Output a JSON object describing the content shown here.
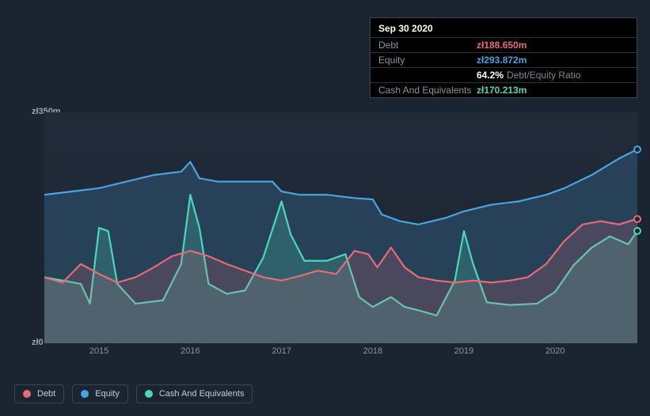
{
  "tooltip": {
    "date": "Sep 30 2020",
    "rows": [
      {
        "label": "Debt",
        "value": "zł188.650m",
        "color": "#e76a78"
      },
      {
        "label": "Equity",
        "value": "zł293.872m",
        "color": "#4aa3e0"
      },
      {
        "label": "",
        "value": "64.2%",
        "suffix": "Debt/Equity Ratio",
        "color": "#ffffff"
      },
      {
        "label": "Cash And Equivalents",
        "value": "zł170.213m",
        "color": "#4fd6b8"
      }
    ]
  },
  "chart": {
    "type": "area-line",
    "ymin": 0,
    "ymax": 350,
    "ylabels": [
      {
        "text": "zł350m",
        "frac": 0
      },
      {
        "text": "zł0",
        "frac": 1
      }
    ],
    "xmin": 2014.4,
    "xmax": 2020.9,
    "xticks": [
      2015,
      2016,
      2017,
      2018,
      2019,
      2020
    ],
    "background_color": "#1f2935",
    "grid_color": "#2a3340",
    "series": [
      {
        "name": "Equity",
        "color": "#4aa3e0",
        "fill": "rgba(74,163,224,0.20)",
        "line_width": 2.2,
        "end_dot": true,
        "points": [
          [
            2014.4,
            225
          ],
          [
            2014.7,
            230
          ],
          [
            2015.0,
            235
          ],
          [
            2015.3,
            245
          ],
          [
            2015.6,
            255
          ],
          [
            2015.9,
            260
          ],
          [
            2016.0,
            275
          ],
          [
            2016.1,
            250
          ],
          [
            2016.3,
            245
          ],
          [
            2016.6,
            245
          ],
          [
            2016.9,
            245
          ],
          [
            2017.0,
            230
          ],
          [
            2017.2,
            225
          ],
          [
            2017.5,
            225
          ],
          [
            2017.8,
            220
          ],
          [
            2018.0,
            218
          ],
          [
            2018.1,
            195
          ],
          [
            2018.3,
            185
          ],
          [
            2018.5,
            180
          ],
          [
            2018.8,
            190
          ],
          [
            2019.0,
            200
          ],
          [
            2019.3,
            210
          ],
          [
            2019.6,
            215
          ],
          [
            2019.9,
            225
          ],
          [
            2020.1,
            235
          ],
          [
            2020.4,
            255
          ],
          [
            2020.7,
            280
          ],
          [
            2020.9,
            293.872
          ]
        ]
      },
      {
        "name": "Cash And Equivalents",
        "color": "#4fd6b8",
        "fill": "rgba(79,214,184,0.22)",
        "line_width": 2.2,
        "end_dot": true,
        "points": [
          [
            2014.4,
            100
          ],
          [
            2014.6,
            95
          ],
          [
            2014.8,
            90
          ],
          [
            2014.9,
            60
          ],
          [
            2015.0,
            175
          ],
          [
            2015.1,
            170
          ],
          [
            2015.2,
            90
          ],
          [
            2015.4,
            60
          ],
          [
            2015.7,
            65
          ],
          [
            2015.9,
            120
          ],
          [
            2016.0,
            225
          ],
          [
            2016.1,
            175
          ],
          [
            2016.2,
            90
          ],
          [
            2016.4,
            75
          ],
          [
            2016.6,
            80
          ],
          [
            2016.8,
            130
          ],
          [
            2017.0,
            215
          ],
          [
            2017.1,
            165
          ],
          [
            2017.25,
            125
          ],
          [
            2017.5,
            125
          ],
          [
            2017.7,
            135
          ],
          [
            2017.85,
            70
          ],
          [
            2018.0,
            55
          ],
          [
            2018.2,
            70
          ],
          [
            2018.35,
            55
          ],
          [
            2018.5,
            50
          ],
          [
            2018.7,
            42
          ],
          [
            2018.9,
            95
          ],
          [
            2019.0,
            170
          ],
          [
            2019.1,
            120
          ],
          [
            2019.25,
            62
          ],
          [
            2019.5,
            58
          ],
          [
            2019.8,
            60
          ],
          [
            2020.0,
            78
          ],
          [
            2020.2,
            118
          ],
          [
            2020.4,
            145
          ],
          [
            2020.6,
            162
          ],
          [
            2020.8,
            150
          ],
          [
            2020.9,
            170.213
          ]
        ]
      },
      {
        "name": "Debt",
        "color": "#e76a78",
        "fill": "rgba(231,106,120,0.18)",
        "line_width": 2.2,
        "end_dot": true,
        "points": [
          [
            2014.4,
            100
          ],
          [
            2014.6,
            92
          ],
          [
            2014.8,
            120
          ],
          [
            2015.0,
            105
          ],
          [
            2015.2,
            92
          ],
          [
            2015.4,
            100
          ],
          [
            2015.6,
            115
          ],
          [
            2015.8,
            132
          ],
          [
            2016.0,
            140
          ],
          [
            2016.2,
            132
          ],
          [
            2016.4,
            120
          ],
          [
            2016.6,
            110
          ],
          [
            2016.8,
            100
          ],
          [
            2017.0,
            95
          ],
          [
            2017.2,
            102
          ],
          [
            2017.4,
            110
          ],
          [
            2017.6,
            105
          ],
          [
            2017.8,
            140
          ],
          [
            2017.95,
            135
          ],
          [
            2018.05,
            115
          ],
          [
            2018.2,
            145
          ],
          [
            2018.35,
            115
          ],
          [
            2018.5,
            100
          ],
          [
            2018.7,
            95
          ],
          [
            2018.9,
            92
          ],
          [
            2019.1,
            95
          ],
          [
            2019.3,
            92
          ],
          [
            2019.5,
            95
          ],
          [
            2019.7,
            100
          ],
          [
            2019.9,
            120
          ],
          [
            2020.1,
            155
          ],
          [
            2020.3,
            180
          ],
          [
            2020.5,
            185
          ],
          [
            2020.7,
            180
          ],
          [
            2020.9,
            188.65
          ]
        ]
      }
    ]
  },
  "legend": [
    {
      "label": "Debt",
      "color": "#e76a78"
    },
    {
      "label": "Equity",
      "color": "#4aa3e0"
    },
    {
      "label": "Cash And Equivalents",
      "color": "#4fd6b8"
    }
  ]
}
